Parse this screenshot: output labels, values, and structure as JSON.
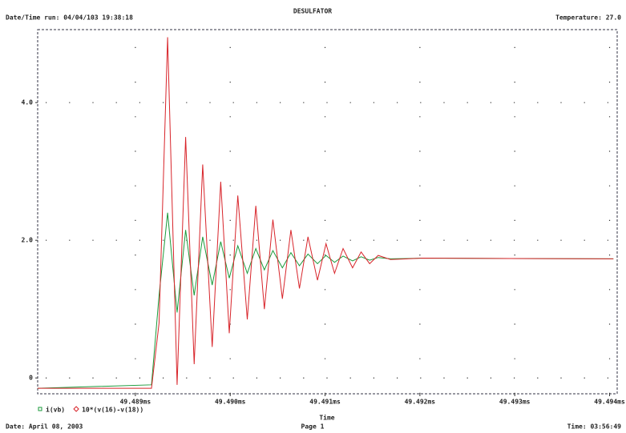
{
  "chart_data": {
    "type": "line",
    "title": "DESULFATOR",
    "header_left": "Date/Time run: 04/04/103 19:38:18",
    "header_right": "Temperature: 27.0",
    "xlabel": "Time",
    "footer_left": "Date: April 08, 2003",
    "footer_center": "Page 1",
    "footer_right": "Time: 03:56:49",
    "grid": true,
    "xlim": [
      49.48797,
      49.49408
    ],
    "ylim": [
      -0.23,
      5.06
    ],
    "xticks": [
      {
        "value": 49.489,
        "label": "49.489ms"
      },
      {
        "value": 49.49,
        "label": "49.490ms"
      },
      {
        "value": 49.491,
        "label": "49.491ms"
      },
      {
        "value": 49.492,
        "label": "49.492ms"
      },
      {
        "value": 49.493,
        "label": "49.493ms"
      },
      {
        "value": 49.494,
        "label": "49.494ms"
      }
    ],
    "yticks": [
      0,
      {
        "value": 2,
        "label": "2.0"
      },
      {
        "value": 4,
        "label": "4.0"
      }
    ],
    "x": [
      49.48797,
      49.48917,
      49.48925,
      49.48934,
      49.48944,
      49.48953,
      49.48962,
      49.48971,
      49.48981,
      49.4899,
      49.48999,
      49.49008,
      49.49018,
      49.49027,
      49.49036,
      49.49045,
      49.49055,
      49.49064,
      49.49073,
      49.49082,
      49.49092,
      49.49101,
      49.4911,
      49.49119,
      49.49129,
      49.49138,
      49.49147,
      49.49156,
      49.49169,
      49.49203,
      49.49404
    ],
    "series": [
      {
        "name": "i(vb)",
        "color": "#1a9a3a",
        "marker": "square",
        "values": [
          -0.15,
          -0.1,
          1.2,
          2.4,
          0.95,
          2.15,
          1.2,
          2.05,
          1.35,
          1.98,
          1.45,
          1.92,
          1.52,
          1.88,
          1.57,
          1.85,
          1.6,
          1.82,
          1.63,
          1.8,
          1.66,
          1.78,
          1.68,
          1.77,
          1.7,
          1.76,
          1.71,
          1.75,
          1.73,
          1.74,
          1.73
        ]
      },
      {
        "name": "10*(v(16)-v(18))",
        "color": "#d8242a",
        "marker": "diamond",
        "values": [
          -0.15,
          -0.15,
          0.8,
          4.95,
          -0.1,
          3.5,
          0.2,
          3.1,
          0.45,
          2.85,
          0.65,
          2.65,
          0.85,
          2.5,
          1.0,
          2.3,
          1.15,
          2.15,
          1.3,
          2.05,
          1.42,
          1.95,
          1.52,
          1.88,
          1.6,
          1.83,
          1.66,
          1.78,
          1.72,
          1.74,
          1.73
        ]
      }
    ]
  }
}
